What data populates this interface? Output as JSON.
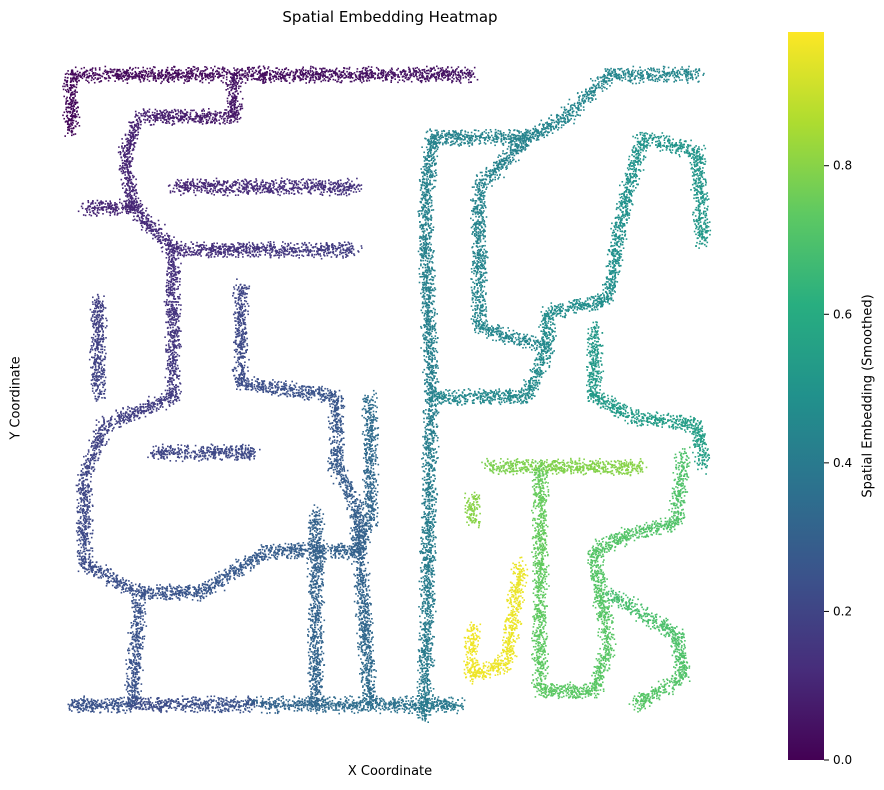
{
  "chart_data": {
    "type": "heatmap",
    "title": "Spatial Embedding Heatmap",
    "xlabel": "X Coordinate",
    "ylabel": "Y Coordinate",
    "colorbar": {
      "label": "Spatial Embedding (Smoothed)",
      "range": [
        0.0,
        0.98
      ],
      "ticks": [
        0.0,
        0.2,
        0.4,
        0.6,
        0.8
      ],
      "tick_labels": [
        "0.0",
        "0.2",
        "0.4",
        "0.6",
        "0.8"
      ],
      "colormap": "viridis"
    },
    "axes_visible": false,
    "grid": false,
    "description_values": {
      "low_region": "top-left corridors",
      "high_region": "bottom-center corridors"
    },
    "paths": [
      {
        "points": [
          [
            0.03,
            0.06
          ],
          [
            0.3,
            0.06
          ],
          [
            0.62,
            0.06
          ]
        ],
        "v0": 0.02,
        "v1": 0.05
      },
      {
        "points": [
          [
            0.03,
            0.06
          ],
          [
            0.03,
            0.14
          ]
        ],
        "v0": 0.02,
        "v1": 0.02
      },
      {
        "points": [
          [
            0.27,
            0.06
          ],
          [
            0.27,
            0.12
          ],
          [
            0.13,
            0.12
          ],
          [
            0.11,
            0.17
          ],
          [
            0.12,
            0.25
          ],
          [
            0.18,
            0.31
          ],
          [
            0.18,
            0.52
          ],
          [
            0.08,
            0.56
          ],
          [
            0.05,
            0.63
          ],
          [
            0.05,
            0.76
          ],
          [
            0.13,
            0.8
          ],
          [
            0.22,
            0.8
          ],
          [
            0.32,
            0.74
          ],
          [
            0.45,
            0.74
          ],
          [
            0.47,
            0.7
          ],
          [
            0.47,
            0.52
          ]
        ],
        "v0": 0.05,
        "v1": 0.35
      },
      {
        "points": [
          [
            0.13,
            0.25
          ],
          [
            0.05,
            0.25
          ]
        ],
        "v0": 0.1,
        "v1": 0.1
      },
      {
        "points": [
          [
            0.18,
            0.31
          ],
          [
            0.28,
            0.31
          ],
          [
            0.45,
            0.31
          ]
        ],
        "v0": 0.12,
        "v1": 0.18
      },
      {
        "points": [
          [
            0.18,
            0.22
          ],
          [
            0.45,
            0.22
          ]
        ],
        "v0": 0.1,
        "v1": 0.14
      },
      {
        "points": [
          [
            0.07,
            0.38
          ],
          [
            0.07,
            0.52
          ]
        ],
        "v0": 0.18,
        "v1": 0.2
      },
      {
        "points": [
          [
            0.28,
            0.36
          ],
          [
            0.28,
            0.5
          ],
          [
            0.42,
            0.52
          ],
          [
            0.42,
            0.62
          ],
          [
            0.45,
            0.68
          ],
          [
            0.47,
            0.96
          ]
        ],
        "v0": 0.2,
        "v1": 0.35
      },
      {
        "points": [
          [
            0.13,
            0.8
          ],
          [
            0.12,
            0.96
          ],
          [
            0.03,
            0.96
          ]
        ],
        "v0": 0.25,
        "v1": 0.25
      },
      {
        "points": [
          [
            0.12,
            0.96
          ],
          [
            0.3,
            0.96
          ]
        ],
        "v0": 0.22,
        "v1": 0.25
      },
      {
        "points": [
          [
            0.3,
            0.96
          ],
          [
            0.6,
            0.96
          ]
        ],
        "v0": 0.3,
        "v1": 0.4
      },
      {
        "points": [
          [
            0.15,
            0.6
          ],
          [
            0.3,
            0.6
          ]
        ],
        "v0": 0.2,
        "v1": 0.22
      },
      {
        "points": [
          [
            0.39,
            0.68
          ],
          [
            0.39,
            0.96
          ]
        ],
        "v0": 0.3,
        "v1": 0.32
      },
      {
        "points": [
          [
            0.55,
            0.98
          ],
          [
            0.56,
            0.52
          ],
          [
            0.55,
            0.26
          ],
          [
            0.56,
            0.15
          ],
          [
            0.7,
            0.15
          ],
          [
            0.76,
            0.12
          ],
          [
            0.82,
            0.06
          ],
          [
            0.95,
            0.06
          ]
        ],
        "v0": 0.4,
        "v1": 0.45
      },
      {
        "points": [
          [
            0.56,
            0.52
          ],
          [
            0.7,
            0.52
          ],
          [
            0.73,
            0.45
          ],
          [
            0.73,
            0.4
          ],
          [
            0.82,
            0.38
          ],
          [
            0.84,
            0.26
          ],
          [
            0.87,
            0.15
          ],
          [
            0.95,
            0.17
          ],
          [
            0.96,
            0.3
          ]
        ],
        "v0": 0.45,
        "v1": 0.52
      },
      {
        "points": [
          [
            0.7,
            0.15
          ],
          [
            0.63,
            0.22
          ],
          [
            0.63,
            0.42
          ],
          [
            0.73,
            0.45
          ]
        ],
        "v0": 0.43,
        "v1": 0.45
      },
      {
        "points": [
          [
            0.8,
            0.42
          ],
          [
            0.8,
            0.52
          ],
          [
            0.86,
            0.55
          ],
          [
            0.95,
            0.56
          ],
          [
            0.96,
            0.62
          ]
        ],
        "v0": 0.52,
        "v1": 0.55
      },
      {
        "points": [
          [
            0.64,
            0.62
          ],
          [
            0.87,
            0.62
          ]
        ],
        "v0": 0.78,
        "v1": 0.8
      },
      {
        "points": [
          [
            0.62,
            0.66
          ],
          [
            0.62,
            0.7
          ]
        ],
        "v0": 0.8,
        "v1": 0.8
      },
      {
        "points": [
          [
            0.72,
            0.62
          ],
          [
            0.72,
            0.88
          ],
          [
            0.72,
            0.94
          ],
          [
            0.8,
            0.94
          ],
          [
            0.82,
            0.88
          ],
          [
            0.8,
            0.74
          ],
          [
            0.84,
            0.72
          ],
          [
            0.92,
            0.7
          ],
          [
            0.93,
            0.6
          ]
        ],
        "v0": 0.75,
        "v1": 0.7
      },
      {
        "points": [
          [
            0.82,
            0.8
          ],
          [
            0.92,
            0.86
          ],
          [
            0.93,
            0.92
          ],
          [
            0.86,
            0.96
          ]
        ],
        "v0": 0.68,
        "v1": 0.72
      },
      {
        "points": [
          [
            0.69,
            0.76
          ],
          [
            0.68,
            0.84
          ],
          [
            0.67,
            0.9
          ],
          [
            0.62,
            0.92
          ],
          [
            0.62,
            0.85
          ]
        ],
        "v0": 0.95,
        "v1": 0.96
      }
    ]
  }
}
